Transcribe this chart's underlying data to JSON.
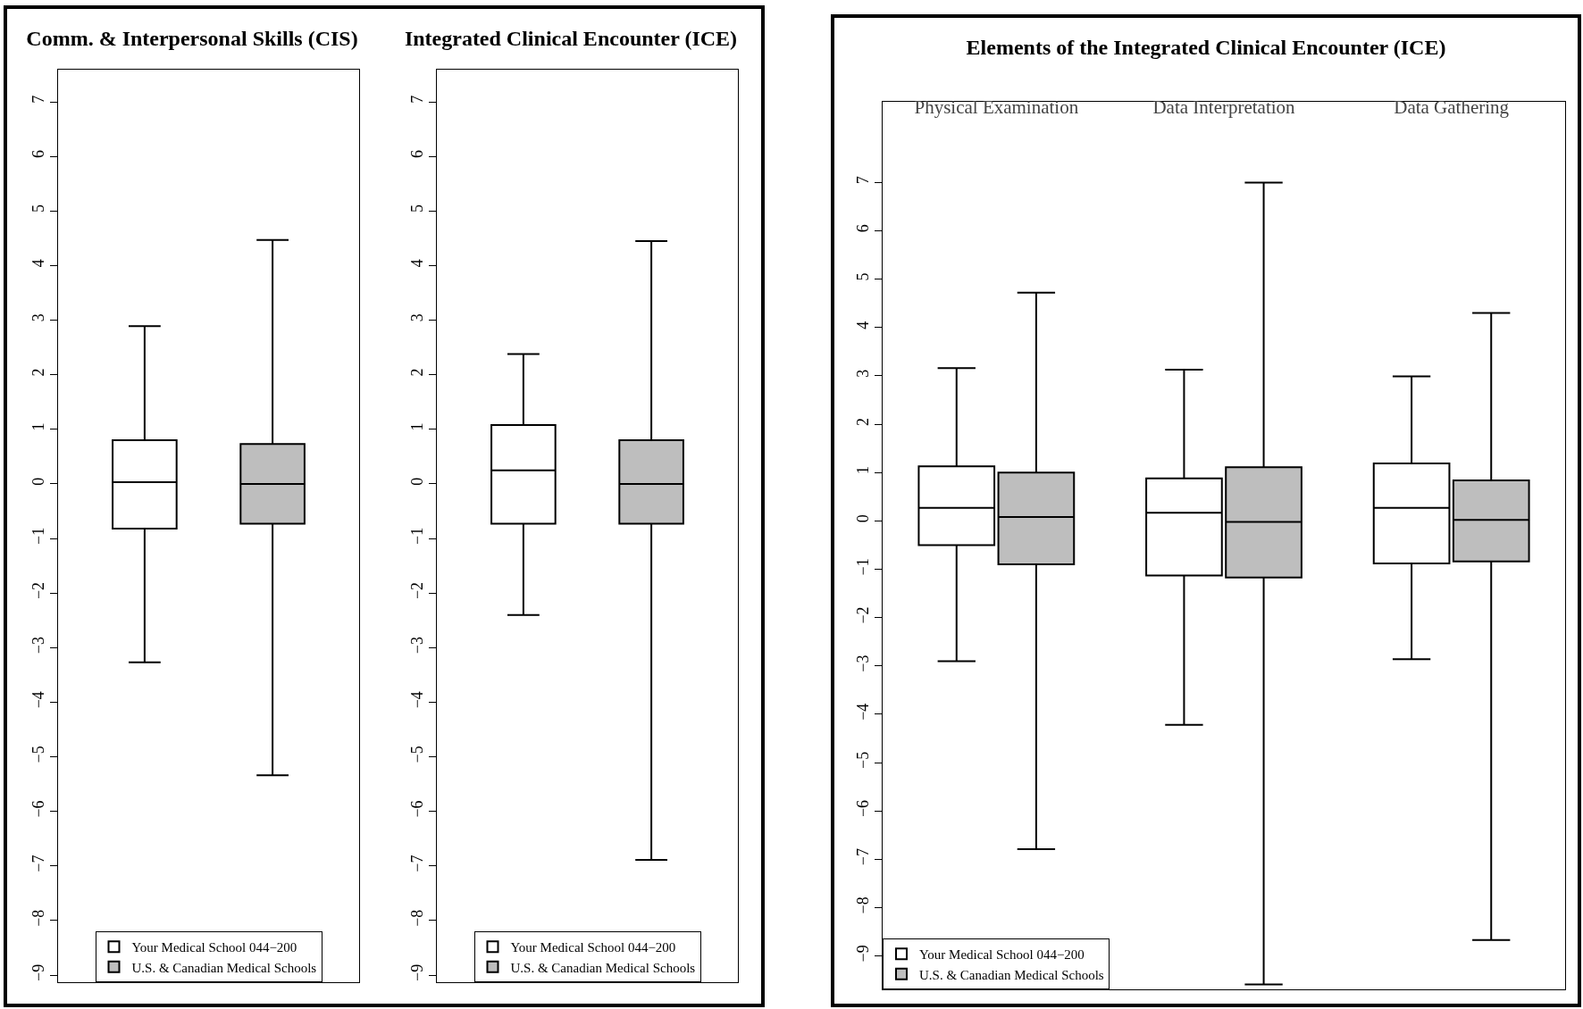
{
  "chart_data": [
    {
      "type": "box",
      "title": "Comm. & Interpersonal Skills (CIS)",
      "categories": [
        null
      ],
      "ylim": [
        -9.13,
        7.59
      ],
      "yticks": [
        -9,
        -8,
        -7,
        -6,
        -5,
        -4,
        -3,
        -2,
        -1,
        0,
        1,
        2,
        3,
        4,
        5,
        6,
        7
      ],
      "grid": false,
      "legend": "bottom",
      "tick_labels": "y",
      "series": [
        {
          "name": "Your Medical School 044−200",
          "color": "#ffffff",
          "boxes": [
            {
              "low": -3.27,
              "q1": -0.82,
              "median": 0.03,
              "q3": 0.8,
              "high": 2.89
            }
          ]
        },
        {
          "name": "U.S. & Canadian Medical Schools",
          "color": "#bebebe",
          "boxes": [
            {
              "low": -5.34,
              "q1": -0.73,
              "median": 0.0,
              "q3": 0.73,
              "high": 4.47
            }
          ]
        }
      ]
    },
    {
      "type": "box",
      "title": "Integrated Clinical Encounter (ICE)",
      "categories": [
        null
      ],
      "ylim": [
        -9.13,
        7.59
      ],
      "yticks": [
        -9,
        -8,
        -7,
        -6,
        -5,
        -4,
        -3,
        -2,
        -1,
        0,
        1,
        2,
        3,
        4,
        5,
        6,
        7
      ],
      "grid": false,
      "legend": "bottom",
      "tick_labels": "y",
      "series": [
        {
          "name": "Your Medical School 044−200",
          "color": "#ffffff",
          "boxes": [
            {
              "low": -2.4,
              "q1": -0.73,
              "median": 0.25,
              "q3": 1.08,
              "high": 2.38
            }
          ]
        },
        {
          "name": "U.S. & Canadian Medical Schools",
          "color": "#bebebe",
          "boxes": [
            {
              "low": -6.89,
              "q1": -0.73,
              "median": 0.0,
              "q3": 0.8,
              "high": 4.45
            }
          ]
        }
      ]
    },
    {
      "type": "box",
      "title": "Elements of the Integrated Clinical Encounter (ICE)",
      "categories": [
        "Physical Examination",
        "Data Interpretation",
        "Data Gathering"
      ],
      "ylim": [
        -9.69,
        8.67
      ],
      "yticks": [
        -9,
        -8,
        -7,
        -6,
        -5,
        -4,
        -3,
        -2,
        -1,
        0,
        1,
        2,
        3,
        4,
        5,
        6,
        7
      ],
      "grid": false,
      "legend": "bottom left",
      "series": [
        {
          "name": "Your Medical School 044−200",
          "color": "#ffffff",
          "boxes": [
            {
              "low": -2.9,
              "q1": -0.5,
              "median": 0.27,
              "q3": 1.13,
              "high": 3.16
            },
            {
              "low": -4.22,
              "q1": -1.13,
              "median": 0.17,
              "q3": 0.88,
              "high": 3.13
            },
            {
              "low": -2.86,
              "q1": -0.88,
              "median": 0.27,
              "q3": 1.19,
              "high": 2.99
            }
          ]
        },
        {
          "name": "U.S. & Canadian Medical Schools",
          "color": "#bebebe",
          "boxes": [
            {
              "low": -6.79,
              "q1": -0.9,
              "median": 0.08,
              "q3": 1.0,
              "high": 4.72
            },
            {
              "low": -9.59,
              "q1": -1.17,
              "median": -0.02,
              "q3": 1.11,
              "high": 7.0
            },
            {
              "low": -8.67,
              "q1": -0.84,
              "median": 0.02,
              "q3": 0.84,
              "high": 4.3
            }
          ]
        }
      ]
    }
  ]
}
